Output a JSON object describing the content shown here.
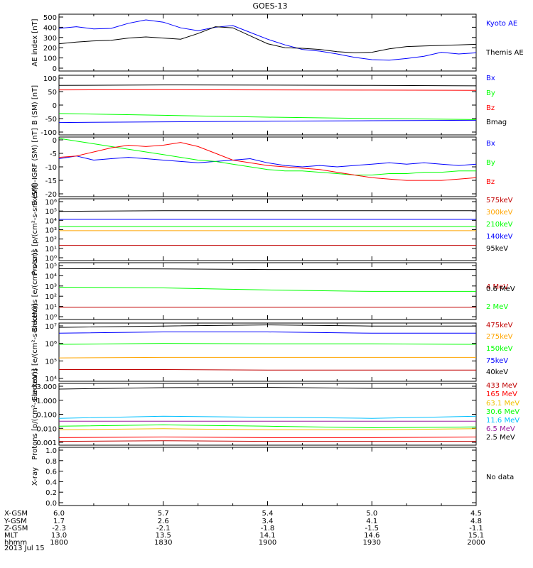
{
  "title": "GOES-13",
  "date": "2013 Jul 15",
  "colors": {
    "black": "#000000",
    "blue": "#0000ff",
    "green": "#00ff00",
    "red": "#ff0000",
    "dark_red": "#c00000",
    "orange": "#ffa500",
    "gold": "#f0c000",
    "cyan": "#00c0ff",
    "purple": "#9b1da0"
  },
  "ephemeris": {
    "labels": [
      "X-GSM",
      "Y-GSM",
      "Z-GSM",
      "MLT",
      "hhmm"
    ],
    "columns": [
      [
        "6.0",
        "1.7",
        "-2.3",
        "13.0",
        "1800"
      ],
      [
        "5.7",
        "2.6",
        "-2.1",
        "13.5",
        "1830"
      ],
      [
        "5.4",
        "3.4",
        "-1.8",
        "14.1",
        "1900"
      ],
      [
        "5.0",
        "4.1",
        "-1.5",
        "14.6",
        "1930"
      ],
      [
        "4.5",
        "4.8",
        "-1.1",
        "15.1",
        "2000"
      ]
    ]
  },
  "chart_data": [
    {
      "type": "line",
      "title": "GOES-13",
      "ylabel": "AE index [nT]",
      "ylim": [
        0,
        500
      ],
      "yticks": [
        "500",
        "400",
        "300",
        "200",
        "100",
        "0"
      ],
      "series": [
        {
          "name": "Kyoto AE",
          "color": "#0000ff",
          "x": [
            1800,
            1805,
            1810,
            1815,
            1820,
            1825,
            1830,
            1835,
            1840,
            1845,
            1850,
            1855,
            1900,
            1905,
            1910,
            1915,
            1920,
            1925,
            1930,
            1935,
            1940,
            1945,
            1950,
            1955,
            2000
          ],
          "values": [
            375,
            390,
            370,
            375,
            420,
            450,
            430,
            380,
            355,
            385,
            400,
            340,
            280,
            230,
            190,
            175,
            150,
            120,
            100,
            95,
            110,
            130,
            165,
            150,
            160
          ]
        },
        {
          "name": "Themis AE",
          "color": "#000000",
          "x": [
            1800,
            1805,
            1810,
            1815,
            1820,
            1825,
            1830,
            1835,
            1840,
            1845,
            1850,
            1855,
            1900,
            1905,
            1910,
            1915,
            1920,
            1925,
            1930,
            1935,
            1940,
            1945,
            1950,
            1955,
            2000
          ],
          "values": [
            240,
            255,
            265,
            270,
            290,
            300,
            290,
            280,
            330,
            390,
            380,
            310,
            240,
            205,
            200,
            190,
            170,
            160,
            165,
            195,
            215,
            220,
            225,
            230,
            235
          ]
        }
      ]
    },
    {
      "type": "line",
      "ylabel": "B (SM) [nT]",
      "ylim": [
        -115,
        150
      ],
      "yticks": [
        "100",
        "50",
        "0",
        "-50",
        "-100"
      ],
      "series": [
        {
          "name": "Bx",
          "color": "#0000ff",
          "x": [
            1800,
            1830,
            1900,
            1930,
            2000
          ],
          "values": [
            -60,
            -57,
            -54,
            -52,
            -50
          ]
        },
        {
          "name": "By",
          "color": "#00ff00",
          "x": [
            1800,
            1830,
            1900,
            1930,
            2000
          ],
          "values": [
            -20,
            -28,
            -36,
            -42,
            -47
          ]
        },
        {
          "name": "Bz",
          "color": "#ff0000",
          "x": [
            1800,
            1830,
            1900,
            1930,
            2000
          ],
          "values": [
            85,
            86,
            85,
            84,
            83
          ]
        },
        {
          "name": "Bmag",
          "color": "#000000",
          "x": [
            1800,
            1830,
            1900,
            1930,
            2000
          ],
          "values": [
            105,
            107,
            106,
            105,
            103
          ]
        }
      ]
    },
    {
      "type": "line",
      "ylabel": "B (SM)-IGRF (SM) [nT]",
      "ylim": [
        -22,
        0
      ],
      "yticks": [
        "0",
        "-5",
        "-10",
        "-15",
        "-20"
      ],
      "series": [
        {
          "name": "Bx",
          "color": "#0000ff",
          "x": [
            1800,
            1805,
            1810,
            1815,
            1820,
            1825,
            1830,
            1835,
            1840,
            1845,
            1850,
            1855,
            1900,
            1905,
            1910,
            1915,
            1920,
            1925,
            1930,
            1935,
            1940,
            1945,
            1950,
            1955,
            2000
          ],
          "values": [
            -8.0,
            -7.0,
            -8.5,
            -8.0,
            -7.5,
            -8.0,
            -8.5,
            -9.0,
            -9.5,
            -9.0,
            -8.5,
            -8.0,
            -9.5,
            -10.5,
            -11.0,
            -10.5,
            -11.0,
            -10.5,
            -10.0,
            -9.5,
            -10.0,
            -9.5,
            -10.0,
            -10.5,
            -10.0
          ]
        },
        {
          "name": "By",
          "color": "#00ff00",
          "x": [
            1800,
            1805,
            1810,
            1815,
            1820,
            1825,
            1830,
            1835,
            1840,
            1845,
            1850,
            1855,
            1900,
            1905,
            1910,
            1915,
            1920,
            1925,
            1930,
            1935,
            1940,
            1945,
            1950,
            1955,
            2000
          ],
          "values": [
            -0.5,
            -1.5,
            -2.5,
            -3.5,
            -4.5,
            -5.5,
            -6.5,
            -7.5,
            -8.5,
            -9.0,
            -10.0,
            -11.0,
            -12.0,
            -12.5,
            -12.5,
            -13.0,
            -13.5,
            -14.0,
            -14.0,
            -13.5,
            -13.5,
            -13.0,
            -13.0,
            -12.5,
            -12.5
          ]
        },
        {
          "name": "Bz",
          "color": "#ff0000",
          "x": [
            1800,
            1805,
            1810,
            1815,
            1820,
            1825,
            1830,
            1835,
            1840,
            1845,
            1850,
            1855,
            1900,
            1905,
            1910,
            1915,
            1920,
            1925,
            1930,
            1935,
            1940,
            1945,
            1950,
            1955,
            2000
          ],
          "values": [
            -7.5,
            -7.0,
            -5.5,
            -4.0,
            -3.0,
            -3.5,
            -3.0,
            -2.0,
            -3.5,
            -6.0,
            -8.5,
            -9.5,
            -10.5,
            -11.0,
            -11.5,
            -12.0,
            -13.0,
            -14.0,
            -15.0,
            -15.5,
            -16.0,
            -16.0,
            -16.0,
            -15.5,
            -15.0
          ]
        }
      ]
    },
    {
      "type": "line",
      "scale": "log",
      "ylabel": "Protons [p/(cm²-s-sr-keV)]",
      "ylim": [
        1,
        1000000
      ],
      "yticks": [
        "10⁶",
        "10⁵",
        "10⁴",
        "10³",
        "10²",
        "10¹",
        "10⁰"
      ],
      "series": [
        {
          "name": "575keV",
          "color": "#c00000",
          "x": [
            1800,
            1830,
            1900,
            1930,
            2000
          ],
          "values": [
            30,
            30,
            30,
            30,
            30
          ]
        },
        {
          "name": "300keV",
          "color": "#ffa500",
          "x": [
            1800,
            1830,
            1900,
            1930,
            2000
          ],
          "values": [
            800,
            800,
            800,
            800,
            800
          ]
        },
        {
          "name": "210keV",
          "color": "#00ff00",
          "x": [
            1800,
            1830,
            1900,
            1930,
            2000
          ],
          "values": [
            2000,
            2000,
            2000,
            2000,
            2000
          ]
        },
        {
          "name": "140keV",
          "color": "#0000ff",
          "x": [
            1800,
            1830,
            1900,
            1930,
            2000
          ],
          "values": [
            10000,
            10000,
            10000,
            10000,
            10000
          ]
        },
        {
          "name": "95keV",
          "color": "#000000",
          "x": [
            1800,
            1830,
            1900,
            1930,
            2000
          ],
          "values": [
            60000,
            70000,
            70000,
            70000,
            70000
          ]
        }
      ]
    },
    {
      "type": "line",
      "scale": "log",
      "ylabel": "Electrons [e/(cm²-s-sr)]",
      "ylim": [
        1,
        100000
      ],
      "yticks": [
        "10⁵",
        "10⁴",
        "10³",
        "10²",
        "10¹",
        "10⁰"
      ],
      "series": [
        {
          "name": "4 MeV",
          "color": "#c00000",
          "x": [
            1800,
            1830,
            1900,
            1930,
            2000
          ],
          "values": [
            12,
            12,
            12,
            12,
            12
          ]
        },
        {
          "name": "2 MeV",
          "color": "#00ff00",
          "x": [
            1800,
            1830,
            1900,
            1930,
            2000
          ],
          "values": [
            700,
            600,
            400,
            300,
            300
          ]
        },
        {
          "name": "0.6 MeV",
          "color": "#000000",
          "x": [
            1800,
            1830,
            1900,
            1930,
            2000
          ],
          "values": [
            30000,
            28000,
            25000,
            25000,
            25000
          ]
        }
      ]
    },
    {
      "type": "line",
      "scale": "log",
      "ylabel": "Electrons [e/(cm²-s-sr-keV)]",
      "ylim": [
        10000,
        10000000
      ],
      "yticks": [
        "10⁷",
        "10⁶",
        "10⁵",
        "10⁴"
      ],
      "series": [
        {
          "name": "475keV",
          "color": "#c00000",
          "x": [
            1800,
            1830,
            1900,
            1930,
            2000
          ],
          "values": [
            40000,
            40000,
            38000,
            38000,
            38000
          ]
        },
        {
          "name": "275keV",
          "color": "#ffa500",
          "x": [
            1800,
            1830,
            1900,
            1930,
            2000
          ],
          "values": [
            160000,
            170000,
            170000,
            170000,
            170000
          ]
        },
        {
          "name": "150keV",
          "color": "#00ff00",
          "x": [
            1800,
            1830,
            1900,
            1930,
            2000
          ],
          "values": [
            800000,
            900000,
            850000,
            850000,
            800000
          ]
        },
        {
          "name": "75keV",
          "color": "#0000ff",
          "x": [
            1800,
            1830,
            1900,
            1930,
            2000
          ],
          "values": [
            3000000,
            3500000,
            3500000,
            3000000,
            3000000
          ]
        },
        {
          "name": "40keV",
          "color": "#000000",
          "x": [
            1800,
            1830,
            1900,
            1930,
            2000
          ],
          "values": [
            6000000,
            7000000,
            8000000,
            7000000,
            7000000
          ]
        }
      ]
    },
    {
      "type": "line",
      "scale": "log",
      "ylabel": "Protons [p/(cm²-s-sr-keV)]",
      "ylim": [
        0.0007,
        4
      ],
      "yticks": [
        "3.000",
        "1.000",
        "0.100",
        "0.010",
        "0.001"
      ],
      "series": [
        {
          "name": "433 MeV",
          "color": "#c00000",
          "x": [
            1800,
            1830,
            1900,
            1930,
            2000
          ],
          "values": [
            0.0012,
            0.0013,
            0.0012,
            0.0012,
            0.0012
          ]
        },
        {
          "name": "165 MeV",
          "color": "#ff0000",
          "x": [
            1800,
            1830,
            1900,
            1930,
            2000
          ],
          "values": [
            0.002,
            0.0022,
            0.002,
            0.002,
            0.0022
          ]
        },
        {
          "name": "63.1 MeV",
          "color": "#f0c000",
          "x": [
            1800,
            1830,
            1900,
            1930,
            2000
          ],
          "values": [
            0.006,
            0.007,
            0.006,
            0.006,
            0.007
          ]
        },
        {
          "name": "30.6 MeV",
          "color": "#00ff00",
          "x": [
            1800,
            1830,
            1900,
            1930,
            2000
          ],
          "values": [
            0.01,
            0.012,
            0.01,
            0.008,
            0.009
          ]
        },
        {
          "name": "11.6 MeV",
          "color": "#00c0ff",
          "x": [
            1800,
            1830,
            1900,
            1930,
            2000
          ],
          "values": [
            0.03,
            0.04,
            0.035,
            0.03,
            0.04
          ]
        },
        {
          "name": "6.5 MeV",
          "color": "#9b1da0",
          "x": [
            1800,
            1830,
            1900,
            1930,
            2000
          ],
          "values": [
            0.02,
            0.02,
            0.02,
            0.02,
            0.02
          ]
        },
        {
          "name": "2.5 MeV",
          "color": "#000000",
          "x": [
            1800,
            1830,
            1900,
            1930,
            2000
          ],
          "values": [
            1.8,
            2.2,
            2.3,
            2.0,
            2.0
          ]
        }
      ]
    },
    {
      "type": "line",
      "ylabel": "X-ray",
      "ylim": [
        0,
        1
      ],
      "yticks": [
        "1.0",
        "0.8",
        "0.6",
        "0.4",
        "0.2",
        "0.0"
      ],
      "series": [],
      "annotation": "No data"
    }
  ]
}
